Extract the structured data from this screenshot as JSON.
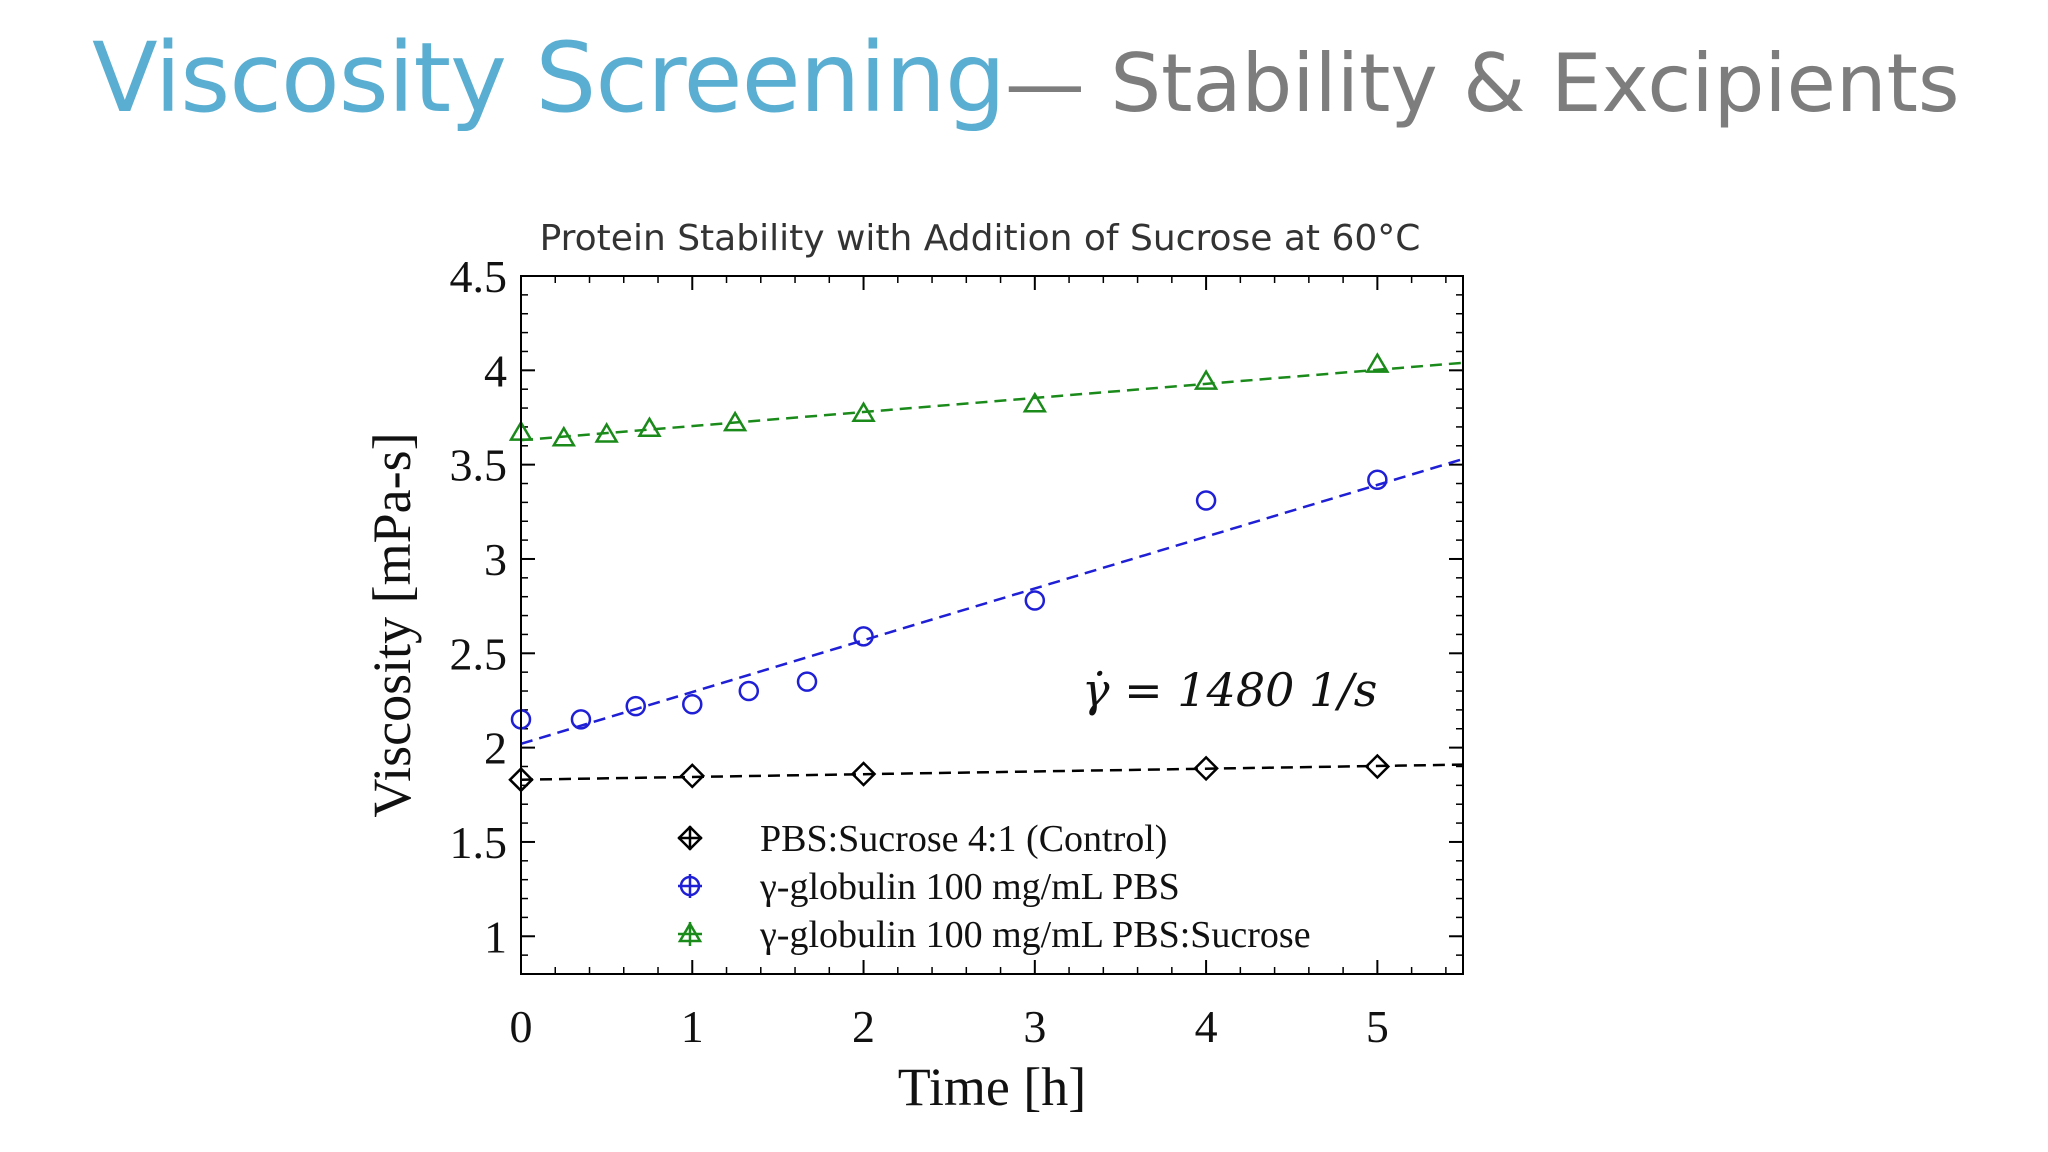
{
  "slide": {
    "title_main": "Viscosity Screening",
    "title_sub": "— Stability & Excipients"
  },
  "chart_data": {
    "type": "scatter",
    "title": "Protein Stability with Addition of Sucrose at 60°C",
    "xlabel": "Time [h]",
    "ylabel": "Viscosity [mPa-s]",
    "xlim": [
      0,
      5.5
    ],
    "ylim": [
      0.8,
      4.5
    ],
    "x_ticks": [
      0,
      1,
      2,
      3,
      4,
      5
    ],
    "x_tick_labels": [
      "0",
      "1",
      "2",
      "3",
      "4",
      "5"
    ],
    "y_ticks": [
      1,
      1.5,
      2,
      2.5,
      3,
      3.5,
      4,
      4.5
    ],
    "y_tick_labels": [
      "1",
      "1.5",
      "2",
      "2.5",
      "3",
      "3.5",
      "4",
      "4.5"
    ],
    "grid": false,
    "legend_position": "bottom-center",
    "annotation": "γ̇ = 1480 1/s",
    "series": [
      {
        "name": "PBS:Sucrose 4:1 (Control)",
        "marker": "diamond",
        "color": "#000000",
        "x": [
          0,
          1,
          2,
          4,
          5
        ],
        "y": [
          1.83,
          1.85,
          1.86,
          1.89,
          1.9
        ],
        "fit": [
          [
            0,
            1.83
          ],
          [
            5.5,
            1.91
          ]
        ]
      },
      {
        "name": "γ-globulin 100 mg/mL PBS",
        "marker": "circle",
        "color": "#1f1fd6",
        "x": [
          0,
          0.35,
          0.67,
          1,
          1.33,
          1.67,
          2,
          3,
          4,
          5
        ],
        "y": [
          2.15,
          2.15,
          2.22,
          2.23,
          2.3,
          2.35,
          2.59,
          2.78,
          3.31,
          3.42
        ],
        "fit": [
          [
            0,
            2.02
          ],
          [
            5.5,
            3.53
          ]
        ]
      },
      {
        "name": "γ-globulin 100 mg/mL PBS:Sucrose",
        "marker": "triangle",
        "color": "#1a8a1a",
        "x": [
          0,
          0.25,
          0.5,
          0.75,
          1.25,
          2,
          3,
          4,
          5
        ],
        "y": [
          3.67,
          3.64,
          3.66,
          3.69,
          3.72,
          3.77,
          3.82,
          3.94,
          4.03
        ],
        "fit": [
          [
            0,
            3.63
          ],
          [
            5.5,
            4.04
          ]
        ]
      }
    ]
  }
}
